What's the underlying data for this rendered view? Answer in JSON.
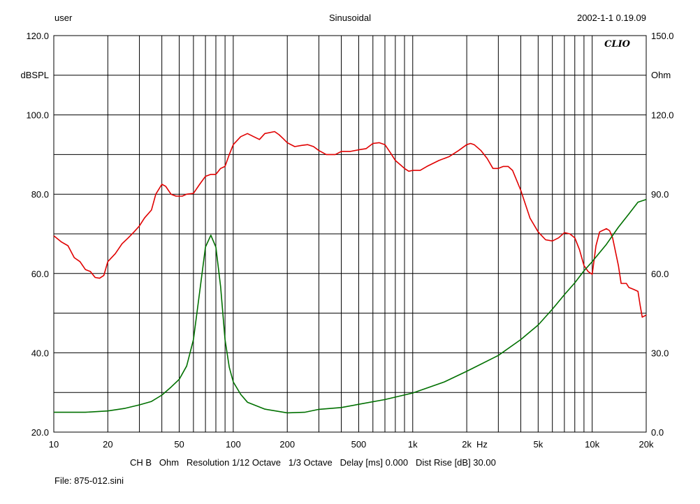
{
  "header": {
    "user": "user",
    "mode": "Sinusoidal",
    "datetime": "2002-1-1 0.19.09",
    "logo": "CLIO"
  },
  "footer": {
    "settings": "CH B   Ohm   Resolution 1/12 Octave   1/3 Octave   Delay [ms] 0.000   Dist Rise [dB] 30.00",
    "file": "File: 875-012.sini"
  },
  "chart_data": {
    "type": "line",
    "x_scale": "log",
    "xlim": [
      10,
      20000
    ],
    "x_unit_label": "Hz",
    "x_tick_labels": [
      {
        "value": 10,
        "label": "10"
      },
      {
        "value": 20,
        "label": "20"
      },
      {
        "value": 50,
        "label": "50"
      },
      {
        "value": 100,
        "label": "100"
      },
      {
        "value": 200,
        "label": "200"
      },
      {
        "value": 500,
        "label": "500"
      },
      {
        "value": 1000,
        "label": "1k"
      },
      {
        "value": 2000,
        "label": "2k"
      },
      {
        "value": 5000,
        "label": "5k"
      },
      {
        "value": 10000,
        "label": "10k"
      },
      {
        "value": 20000,
        "label": "20k"
      }
    ],
    "y_left": {
      "label": "dBSPL",
      "ylim": [
        20,
        120
      ],
      "ticks": [
        {
          "value": 120,
          "label": "120.0"
        },
        {
          "value": 100,
          "label": "100.0"
        },
        {
          "value": 80,
          "label": "80.0"
        },
        {
          "value": 60,
          "label": "60.0"
        },
        {
          "value": 40,
          "label": "40.0"
        },
        {
          "value": 20,
          "label": "20.0"
        }
      ]
    },
    "y_right": {
      "label": "Ohm",
      "ylim": [
        0,
        150
      ],
      "ticks": [
        {
          "value": 150,
          "label": "150.0"
        },
        {
          "value": 120,
          "label": "120.0"
        },
        {
          "value": 90,
          "label": "90.0"
        },
        {
          "value": 60,
          "label": "60.0"
        },
        {
          "value": 30,
          "label": "30.0"
        },
        {
          "value": 0,
          "label": "0.0"
        }
      ]
    },
    "grid": true,
    "series": [
      {
        "axis": "left",
        "color": "#e00000",
        "points": [
          [
            10,
            69.5
          ],
          [
            11,
            68
          ],
          [
            12,
            67
          ],
          [
            13,
            64
          ],
          [
            14,
            63
          ],
          [
            15,
            61
          ],
          [
            16,
            60.5
          ],
          [
            17,
            59
          ],
          [
            18,
            58.8
          ],
          [
            19,
            59.5
          ],
          [
            20,
            63
          ],
          [
            22,
            65
          ],
          [
            24,
            67.5
          ],
          [
            26,
            69
          ],
          [
            28,
            70.5
          ],
          [
            30,
            72
          ],
          [
            32,
            74
          ],
          [
            35,
            76
          ],
          [
            37,
            80
          ],
          [
            40,
            82.5
          ],
          [
            42,
            82
          ],
          [
            45,
            80
          ],
          [
            48,
            79.5
          ],
          [
            52,
            79.5
          ],
          [
            55,
            80
          ],
          [
            60,
            80.2
          ],
          [
            65,
            82.5
          ],
          [
            70,
            84.5
          ],
          [
            75,
            85
          ],
          [
            80,
            85
          ],
          [
            85,
            86.5
          ],
          [
            90,
            87
          ],
          [
            95,
            90
          ],
          [
            100,
            92.5
          ],
          [
            110,
            94.5
          ],
          [
            120,
            95.3
          ],
          [
            130,
            94.5
          ],
          [
            140,
            93.8
          ],
          [
            150,
            95.3
          ],
          [
            170,
            95.8
          ],
          [
            180,
            95
          ],
          [
            190,
            94
          ],
          [
            200,
            93
          ],
          [
            220,
            92
          ],
          [
            240,
            92.3
          ],
          [
            260,
            92.5
          ],
          [
            280,
            92
          ],
          [
            300,
            91
          ],
          [
            330,
            90
          ],
          [
            370,
            90
          ],
          [
            400,
            90.8
          ],
          [
            450,
            90.8
          ],
          [
            500,
            91.2
          ],
          [
            550,
            91.5
          ],
          [
            600,
            92.8
          ],
          [
            650,
            93
          ],
          [
            700,
            92.5
          ],
          [
            750,
            90.5
          ],
          [
            800,
            88.5
          ],
          [
            850,
            87.5
          ],
          [
            900,
            86.5
          ],
          [
            950,
            85.8
          ],
          [
            1000,
            86
          ],
          [
            1100,
            86
          ],
          [
            1200,
            87
          ],
          [
            1400,
            88.5
          ],
          [
            1600,
            89.5
          ],
          [
            1800,
            91
          ],
          [
            2000,
            92.5
          ],
          [
            2100,
            92.8
          ],
          [
            2200,
            92.5
          ],
          [
            2400,
            91
          ],
          [
            2600,
            89
          ],
          [
            2800,
            86.5
          ],
          [
            3000,
            86.5
          ],
          [
            3200,
            87
          ],
          [
            3400,
            87
          ],
          [
            3600,
            86
          ],
          [
            4000,
            81
          ],
          [
            4500,
            74
          ],
          [
            5000,
            70.5
          ],
          [
            5500,
            68.5
          ],
          [
            6000,
            68.2
          ],
          [
            6500,
            69
          ],
          [
            7000,
            70.3
          ],
          [
            7500,
            70
          ],
          [
            8000,
            69
          ],
          [
            8500,
            66
          ],
          [
            9000,
            62
          ],
          [
            9500,
            60.5
          ],
          [
            10000,
            59.8
          ],
          [
            10500,
            67
          ],
          [
            11000,
            70.5
          ],
          [
            12000,
            71.3
          ],
          [
            12500,
            70.8
          ],
          [
            13000,
            69
          ],
          [
            14000,
            62
          ],
          [
            14500,
            57.5
          ],
          [
            15500,
            57.5
          ],
          [
            16000,
            56.5
          ],
          [
            17000,
            56
          ],
          [
            18000,
            55.5
          ],
          [
            18500,
            52
          ],
          [
            19000,
            49
          ],
          [
            20000,
            49.5
          ]
        ]
      },
      {
        "axis": "right",
        "color": "#007000",
        "points": [
          [
            10,
            7.5
          ],
          [
            15,
            7.5
          ],
          [
            20,
            8
          ],
          [
            25,
            9
          ],
          [
            30,
            10.3
          ],
          [
            35,
            11.6
          ],
          [
            40,
            14
          ],
          [
            45,
            17
          ],
          [
            50,
            20
          ],
          [
            55,
            25
          ],
          [
            60,
            35
          ],
          [
            65,
            53
          ],
          [
            70,
            70
          ],
          [
            75,
            74.5
          ],
          [
            80,
            70
          ],
          [
            85,
            55
          ],
          [
            90,
            35
          ],
          [
            95,
            24.5
          ],
          [
            100,
            19
          ],
          [
            110,
            14.3
          ],
          [
            120,
            11.3
          ],
          [
            150,
            8.7
          ],
          [
            200,
            7.3
          ],
          [
            250,
            7.5
          ],
          [
            300,
            8.6
          ],
          [
            400,
            9.3
          ],
          [
            500,
            10.5
          ],
          [
            700,
            12.3
          ],
          [
            1000,
            14.8
          ],
          [
            1500,
            19
          ],
          [
            2000,
            23
          ],
          [
            3000,
            29
          ],
          [
            4000,
            35
          ],
          [
            5000,
            40.5
          ],
          [
            6000,
            46.5
          ],
          [
            7000,
            52
          ],
          [
            8000,
            56.5
          ],
          [
            9000,
            61
          ],
          [
            10000,
            64.5
          ],
          [
            12000,
            71
          ],
          [
            14000,
            77.5
          ],
          [
            16000,
            82.5
          ],
          [
            18000,
            87
          ],
          [
            20000,
            88
          ]
        ]
      }
    ]
  }
}
